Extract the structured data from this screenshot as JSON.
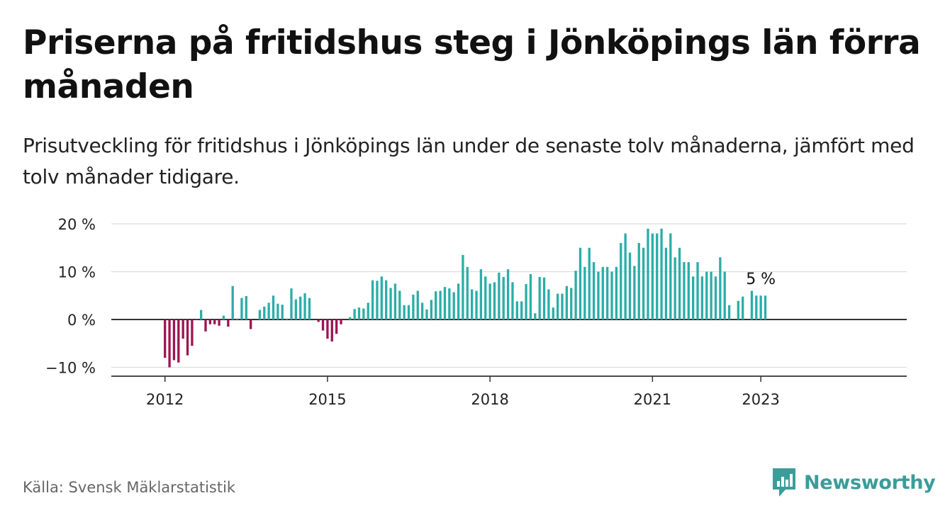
{
  "header": {
    "title": "Priserna på fritidshus steg i Jönköpings län förra månaden",
    "subtitle": "Prisutveckling för fritidshus i Jönköpings län under de senaste tolv månaderna, jämfört med tolv månader tidigare."
  },
  "footer": {
    "source": "Källa: Svensk Mäklarstatistik",
    "brand": "Newsworthy"
  },
  "colors": {
    "positive": "#2bada8",
    "negative": "#9c1452",
    "brand": "#3a9d9a",
    "grid": "#dddddd",
    "axis": "#333333"
  },
  "chart_data": {
    "type": "bar",
    "title": "",
    "xlabel": "",
    "ylabel": "",
    "ylim": [
      -11.7,
      20
    ],
    "yticks": [
      20,
      10,
      0,
      -10
    ],
    "ytick_labels": [
      "20 %",
      "10 %",
      "0 %",
      "−10 %"
    ],
    "xticks": [
      {
        "label": "2012",
        "month": 12
      },
      {
        "label": "2015",
        "month": 48
      },
      {
        "label": "2018",
        "month": 84
      },
      {
        "label": "2021",
        "month": 120
      },
      {
        "label": "2023",
        "month": 144
      }
    ],
    "annotation": {
      "text": "5 %",
      "month": 144
    },
    "start": "2011-01",
    "values": [
      null,
      null,
      null,
      null,
      null,
      null,
      null,
      null,
      null,
      null,
      null,
      null,
      -8,
      -10,
      -8.5,
      -9,
      -4,
      -7.5,
      -5.5,
      0,
      2,
      -2.5,
      -1,
      -1,
      -1.3,
      0.8,
      -1.5,
      7,
      0.2,
      4.5,
      4.9,
      -2,
      null,
      2,
      2.7,
      3.5,
      5,
      3.3,
      3.1,
      0.2,
      6.5,
      4.2,
      4.8,
      5.5,
      4.5,
      null,
      -0.5,
      -2.3,
      -4,
      -4.6,
      -3,
      -1,
      null,
      0.5,
      2.2,
      2.5,
      2.3,
      3.5,
      8.2,
      8.1,
      9,
      8.2,
      6.6,
      7.5,
      6,
      3,
      3,
      5.2,
      6,
      3.5,
      2.1,
      4.1,
      5.9,
      6,
      6.8,
      6.5,
      5.7,
      7.5,
      13.5,
      11,
      6.3,
      6,
      10.5,
      9,
      7.5,
      7.8,
      9.8,
      8.9,
      10.5,
      7.8,
      3.8,
      3.8,
      7.4,
      9.5,
      1.3,
      8.9,
      8.8,
      6.3,
      2.5,
      5.4,
      5.4,
      7,
      6.6,
      10.2,
      15,
      11,
      15,
      12,
      10,
      11,
      11,
      10,
      11,
      16,
      18,
      14,
      11.2,
      16,
      15,
      19,
      18,
      18,
      19,
      15,
      18,
      13,
      15,
      12,
      12,
      9,
      12,
      9,
      10,
      10,
      9,
      13,
      10,
      3,
      null,
      3.9,
      4.8,
      null,
      6,
      5,
      5,
      5
    ]
  }
}
